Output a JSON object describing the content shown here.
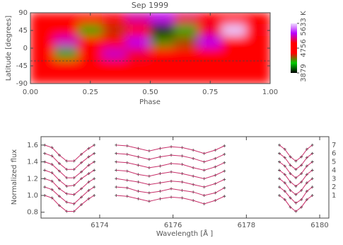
{
  "chart_data": [
    {
      "type": "heatmap",
      "title": "Sep 1999",
      "x_label": "Phase",
      "y_label": "Latitude [degrees]",
      "x": [
        0.05,
        0.15,
        0.25,
        0.35,
        0.45,
        0.55,
        0.65,
        0.75,
        0.85,
        0.95
      ],
      "y": [
        75,
        45,
        15,
        -15,
        -45,
        -75
      ],
      "values": [
        [
          4800,
          4850,
          4900,
          4950,
          5150,
          5250,
          5050,
          4900,
          4850,
          4800
        ],
        [
          4750,
          4700,
          4300,
          4500,
          4650,
          3950,
          4300,
          5000,
          5600,
          4950
        ],
        [
          4850,
          5200,
          4700,
          4900,
          5250,
          4350,
          4450,
          5250,
          4900,
          4850
        ],
        [
          4750,
          4300,
          4800,
          5200,
          5000,
          4700,
          4600,
          4800,
          4850,
          4750
        ],
        [
          4800,
          4750,
          4800,
          4850,
          4800,
          4850,
          4800,
          4800,
          4800,
          4800
        ],
        [
          4800,
          4800,
          4800,
          4800,
          4800,
          4800,
          4800,
          4800,
          4800,
          4800
        ]
      ],
      "xlim": [
        0,
        1
      ],
      "xticks": [
        {
          "value": 0,
          "label": "0.00"
        },
        {
          "value": 0.25,
          "label": "0.25"
        },
        {
          "value": 0.5,
          "label": "0.50"
        },
        {
          "value": 0.75,
          "label": "0.75"
        },
        {
          "value": 1,
          "label": "1.00"
        }
      ],
      "ylim": [
        -90,
        90
      ],
      "yticks": [
        -90,
        -45,
        0,
        45,
        90
      ],
      "colorbar": {
        "lim": [
          3879,
          5633
        ],
        "ticks": [
          3879,
          4756,
          {
            "value": 5633,
            "label": "5633 K"
          }
        ],
        "colors": [
          "#000000",
          "#00cc00",
          "#ff0000",
          "#ff0000",
          "#b800ff",
          "#eedcff"
        ]
      }
    },
    {
      "type": "line",
      "x_label": "Wavelength [Å ]",
      "y_label": "Normalized flux",
      "x": [
        6172.5,
        6172.7,
        6172.9,
        6173.1,
        6173.3,
        6173.5,
        6173.7,
        6173.85,
        6174.1,
        6174.45,
        6174.75,
        6175.05,
        6175.35,
        6175.65,
        6175.95,
        6176.25,
        6176.55,
        6176.85,
        6177.15,
        6177.4,
        6178.2,
        6178.9,
        6179.05,
        6179.2,
        6179.35,
        6179.5,
        6179.65,
        6179.8
      ],
      "xlim": [
        6172.4,
        6180.25
      ],
      "xticks": [
        6174,
        6176,
        6178,
        6180
      ],
      "ylim": [
        0.73,
        1.7
      ],
      "yticks": [
        0.8,
        {
          "value": 1,
          "label": "1.0"
        },
        1.2,
        1.4,
        1.6
      ],
      "point_color": "#333333",
      "series": [
        {
          "name": "1",
          "color": "#c8306a",
          "values": [
            1.0,
            0.97,
            0.88,
            0.81,
            0.81,
            0.89,
            0.96,
            1.0,
            null,
            1.0,
            0.99,
            0.96,
            0.93,
            0.96,
            0.98,
            0.97,
            0.94,
            0.9,
            0.94,
            0.99,
            null,
            1.0,
            0.95,
            0.86,
            0.81,
            0.86,
            0.95,
            1.0
          ]
        },
        {
          "name": "2",
          "color": "#c8306a",
          "values": [
            1.1,
            1.07,
            0.99,
            0.92,
            0.9,
            0.98,
            1.06,
            1.1,
            null,
            1.1,
            1.09,
            1.05,
            1.03,
            1.05,
            1.08,
            1.06,
            1.04,
            1.0,
            1.03,
            1.09,
            null,
            1.1,
            1.05,
            0.97,
            0.91,
            0.95,
            1.05,
            1.1
          ]
        },
        {
          "name": "3",
          "color": "#c8306a",
          "values": [
            1.2,
            1.17,
            1.08,
            1.02,
            1.01,
            1.08,
            1.16,
            1.2,
            null,
            1.2,
            1.18,
            1.16,
            1.13,
            1.15,
            1.17,
            1.16,
            1.13,
            1.1,
            1.14,
            1.19,
            null,
            1.2,
            1.15,
            1.06,
            1.01,
            1.06,
            1.15,
            1.2
          ]
        },
        {
          "name": "4",
          "color": "#c8306a",
          "values": [
            1.3,
            1.27,
            1.18,
            1.11,
            1.12,
            1.2,
            1.26,
            1.3,
            null,
            1.3,
            1.29,
            1.25,
            1.23,
            1.26,
            1.28,
            1.26,
            1.23,
            1.2,
            1.24,
            1.29,
            null,
            1.3,
            1.25,
            1.16,
            1.11,
            1.16,
            1.25,
            1.3
          ]
        },
        {
          "name": "5",
          "color": "#c8306a",
          "values": [
            1.4,
            1.37,
            1.29,
            1.21,
            1.21,
            1.28,
            1.36,
            1.4,
            null,
            1.4,
            1.39,
            1.36,
            1.33,
            1.35,
            1.38,
            1.37,
            1.33,
            1.3,
            1.34,
            1.39,
            null,
            1.4,
            1.35,
            1.26,
            1.21,
            1.26,
            1.35,
            1.4
          ]
        },
        {
          "name": "6",
          "color": "#c8306a",
          "values": [
            1.5,
            1.47,
            1.38,
            1.31,
            1.31,
            1.39,
            1.46,
            1.5,
            null,
            1.5,
            1.49,
            1.46,
            1.43,
            1.46,
            1.48,
            1.47,
            1.44,
            1.4,
            1.44,
            1.49,
            null,
            1.5,
            1.45,
            1.36,
            1.31,
            1.36,
            1.45,
            1.5
          ]
        },
        {
          "name": "7",
          "color": "#c8306a",
          "values": [
            1.6,
            1.57,
            1.48,
            1.41,
            1.41,
            1.49,
            1.56,
            1.6,
            null,
            1.6,
            1.59,
            1.56,
            1.53,
            1.56,
            1.58,
            1.57,
            1.54,
            1.5,
            1.54,
            1.59,
            null,
            1.6,
            1.55,
            1.46,
            1.41,
            1.46,
            1.55,
            1.6
          ]
        }
      ]
    }
  ]
}
